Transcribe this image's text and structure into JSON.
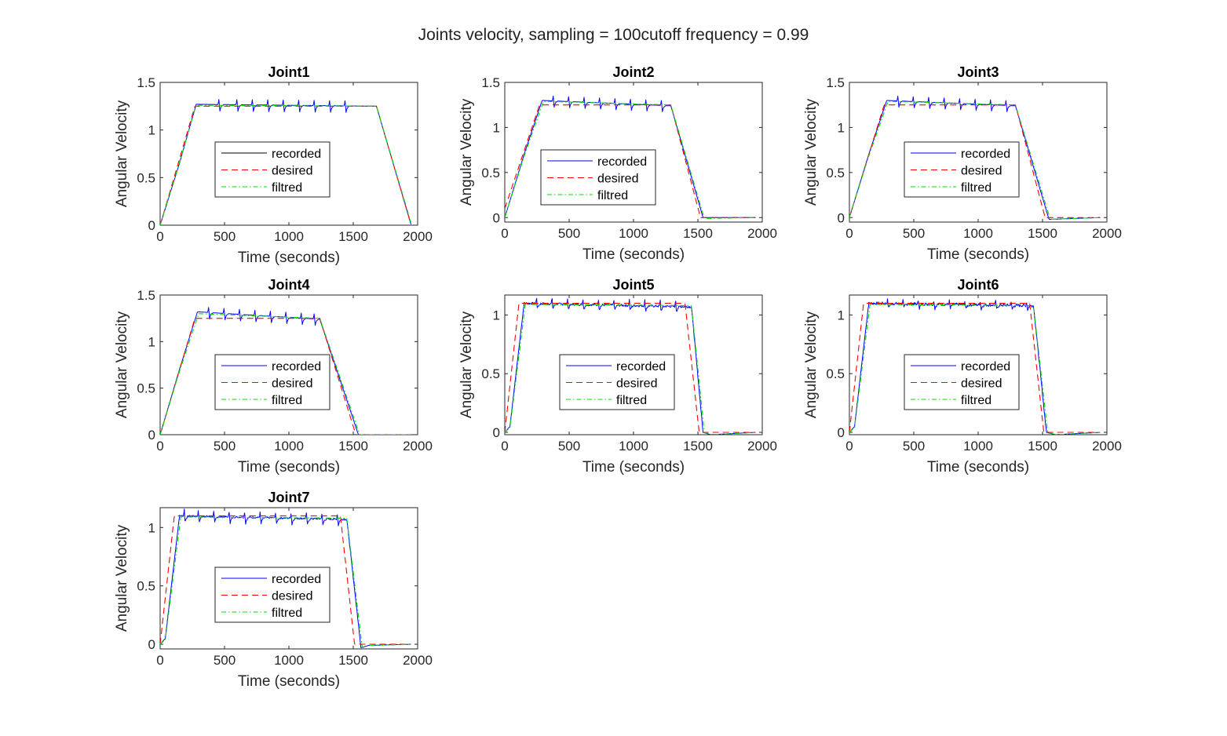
{
  "suptitle": "Joints velocity, sampling = 100cutoff frequency = 0.99",
  "colors": {
    "recorded": "#0000ff",
    "desired": "#ff0000",
    "filtred": "#00dd00",
    "axis": "#262626"
  },
  "chart_data": [
    {
      "type": "line",
      "title": "Joint1",
      "xlabel": "Time (seconds)",
      "ylabel": "Angular Velocity",
      "xlim": [
        0,
        2000
      ],
      "ylim": [
        0,
        1.5
      ],
      "xticks": [
        "0",
        "500",
        "1000",
        "1500",
        "2000"
      ],
      "yticks": [
        "0",
        "0.5",
        "1",
        "1.5"
      ],
      "legend": {
        "position": "center",
        "entries": [
          "recorded",
          "desired",
          "filtred"
        ]
      },
      "recorded_color": "#000000",
      "series": [
        {
          "name": "recorded",
          "x": [
            0,
            150,
            280,
            1680,
            1950
          ],
          "y": [
            0,
            0.65,
            1.27,
            1.25,
            0
          ],
          "spikes": [
            460,
            600,
            720,
            840,
            960,
            1080,
            1200,
            1320,
            1440
          ],
          "spike_amp": 0.09
        },
        {
          "name": "desired",
          "x": [
            0,
            270,
            1680,
            1950
          ],
          "y": [
            0,
            1.25,
            1.25,
            0
          ]
        },
        {
          "name": "filtred",
          "x": [
            0,
            150,
            280,
            1680,
            1950
          ],
          "y": [
            0,
            0.66,
            1.26,
            1.25,
            0.02
          ]
        }
      ]
    },
    {
      "type": "line",
      "title": "Joint2",
      "xlabel": "Time (seconds)",
      "ylabel": "Angular Velocity",
      "xlim": [
        0,
        2000
      ],
      "ylim": [
        -0.05,
        1.5
      ],
      "xticks": [
        "0",
        "500",
        "1000",
        "1500",
        "2000"
      ],
      "yticks": [
        "0",
        "0.5",
        "1",
        "1.5"
      ],
      "legend": {
        "position": "center-left",
        "entries": [
          "recorded",
          "desired",
          "filtred"
        ]
      },
      "series": [
        {
          "name": "recorded",
          "x": [
            0,
            150,
            290,
            1290,
            1540,
            1950
          ],
          "y": [
            0,
            0.7,
            1.3,
            1.24,
            0,
            0
          ],
          "spikes": [
            380,
            500,
            620,
            740,
            860,
            980,
            1100,
            1220
          ],
          "spike_amp": 0.09
        },
        {
          "name": "desired",
          "x": [
            0,
            270,
            1290,
            1520,
            1950
          ],
          "y": [
            0.1,
            1.25,
            1.25,
            0,
            0
          ]
        },
        {
          "name": "filtred",
          "x": [
            0,
            150,
            300,
            1290,
            1550,
            1950
          ],
          "y": [
            0,
            0.68,
            1.29,
            1.25,
            -0.01,
            0
          ]
        }
      ]
    },
    {
      "type": "line",
      "title": "Joint3",
      "xlabel": "Time (seconds)",
      "ylabel": "Angular Velocity",
      "xlim": [
        0,
        2000
      ],
      "ylim": [
        -0.05,
        1.5
      ],
      "xticks": [
        "0",
        "500",
        "1000",
        "1500",
        "2000"
      ],
      "yticks": [
        "0",
        "0.5",
        "1",
        "1.5"
      ],
      "legend": {
        "position": "center",
        "entries": [
          "recorded",
          "desired",
          "filtred"
        ]
      },
      "series": [
        {
          "name": "recorded",
          "x": [
            0,
            150,
            290,
            1290,
            1550,
            1950
          ],
          "y": [
            0,
            0.7,
            1.3,
            1.24,
            -0.02,
            0
          ],
          "spikes": [
            380,
            500,
            620,
            740,
            860,
            980,
            1100,
            1220
          ],
          "spike_amp": 0.09
        },
        {
          "name": "desired",
          "x": [
            0,
            270,
            1290,
            1520,
            1950
          ],
          "y": [
            0,
            1.25,
            1.25,
            0,
            0
          ]
        },
        {
          "name": "filtred",
          "x": [
            0,
            150,
            300,
            1290,
            1560,
            1950
          ],
          "y": [
            0,
            0.68,
            1.29,
            1.25,
            -0.02,
            0
          ]
        }
      ]
    },
    {
      "type": "line",
      "title": "Joint4",
      "xlabel": "Time (seconds)",
      "ylabel": "Angular Velocity",
      "xlim": [
        0,
        2000
      ],
      "ylim": [
        0,
        1.5
      ],
      "xticks": [
        "0",
        "500",
        "1000",
        "1500",
        "2000"
      ],
      "yticks": [
        "0",
        "0.5",
        "1",
        "1.5"
      ],
      "legend": {
        "position": "center",
        "entries": [
          "recorded",
          "desired",
          "filtred"
        ]
      },
      "series": [
        {
          "name": "recorded",
          "x": [
            0,
            150,
            290,
            1240,
            1540,
            1950
          ],
          "y": [
            0,
            0.7,
            1.32,
            1.24,
            0,
            0
          ],
          "spikes": [
            380,
            500,
            620,
            740,
            860,
            980,
            1100,
            1200
          ],
          "spike_amp": 0.09
        },
        {
          "name": "desired",
          "x": [
            0,
            270,
            1240,
            1520,
            1950
          ],
          "y": [
            0,
            1.25,
            1.25,
            0,
            0
          ]
        },
        {
          "name": "filtred",
          "x": [
            0,
            150,
            300,
            1240,
            1550,
            1950
          ],
          "y": [
            0,
            0.68,
            1.3,
            1.25,
            0,
            0
          ]
        }
      ]
    },
    {
      "type": "line",
      "title": "Joint5",
      "xlabel": "Time (seconds)",
      "ylabel": "Angular Velocity",
      "xlim": [
        0,
        2000
      ],
      "ylim": [
        -0.02,
        1.17
      ],
      "xticks": [
        "0",
        "500",
        "1000",
        "1500",
        "2000"
      ],
      "yticks": [
        "0",
        "0.5",
        "1"
      ],
      "legend": {
        "position": "center",
        "entries": [
          "recorded",
          "desired",
          "filtred"
        ]
      },
      "series": [
        {
          "name": "recorded",
          "x": [
            0,
            40,
            150,
            1450,
            1540,
            1600,
            1950
          ],
          "y": [
            0,
            0.05,
            1.1,
            1.07,
            0,
            -0.02,
            0
          ],
          "spikes": [
            250,
            370,
            490,
            610,
            730,
            850,
            970,
            1090,
            1210,
            1330
          ],
          "spike_amp": 0.06,
          "noise": 0.02
        },
        {
          "name": "desired",
          "x": [
            0,
            110,
            1400,
            1510,
            1950
          ],
          "y": [
            0,
            1.1,
            1.1,
            0,
            0
          ]
        },
        {
          "name": "filtred",
          "x": [
            0,
            40,
            160,
            1450,
            1550,
            1610,
            1950
          ],
          "y": [
            0,
            0.04,
            1.09,
            1.08,
            0,
            -0.02,
            0
          ]
        }
      ]
    },
    {
      "type": "line",
      "title": "Joint6",
      "xlabel": "Time (seconds)",
      "ylabel": "Angular Velocity",
      "xlim": [
        0,
        2000
      ],
      "ylim": [
        -0.02,
        1.17
      ],
      "xticks": [
        "0",
        "500",
        "1000",
        "1500",
        "2000"
      ],
      "yticks": [
        "0",
        "0.5",
        "1"
      ],
      "legend": {
        "position": "center",
        "entries": [
          "recorded",
          "desired",
          "filtred"
        ]
      },
      "series": [
        {
          "name": "recorded",
          "x": [
            0,
            40,
            150,
            1430,
            1530,
            1600,
            1950
          ],
          "y": [
            0,
            0.05,
            1.1,
            1.08,
            0,
            -0.02,
            0
          ],
          "spikes": [
            300,
            420,
            540,
            660,
            780,
            900,
            1020,
            1140,
            1260,
            1380
          ],
          "spike_amp": 0.05,
          "noise": 0.025
        },
        {
          "name": "desired",
          "x": [
            0,
            110,
            1400,
            1510,
            1950
          ],
          "y": [
            0,
            1.1,
            1.1,
            0,
            0
          ]
        },
        {
          "name": "filtred",
          "x": [
            0,
            40,
            160,
            1430,
            1540,
            1610,
            1950
          ],
          "y": [
            0,
            0.04,
            1.09,
            1.08,
            0,
            -0.02,
            0
          ]
        }
      ]
    },
    {
      "type": "line",
      "title": "Joint7",
      "xlabel": "Time (seconds)",
      "ylabel": "Angular Velocity",
      "xlim": [
        0,
        2000
      ],
      "ylim": [
        -0.04,
        1.17
      ],
      "xticks": [
        "0",
        "500",
        "1000",
        "1500",
        "2000"
      ],
      "yticks": [
        "0",
        "0.5",
        "1"
      ],
      "legend": {
        "position": "center",
        "entries": [
          "recorded",
          "desired",
          "filtred"
        ]
      },
      "series": [
        {
          "name": "recorded",
          "x": [
            0,
            40,
            150,
            1450,
            1560,
            1620,
            1950
          ],
          "y": [
            0,
            0.05,
            1.1,
            1.07,
            -0.03,
            -0.01,
            0
          ],
          "spikes": [
            190,
            300,
            420,
            540,
            660,
            780,
            900,
            1020,
            1140,
            1260,
            1380
          ],
          "spike_amp": 0.07,
          "noise": 0.015
        },
        {
          "name": "desired",
          "x": [
            0,
            110,
            1400,
            1510,
            1950
          ],
          "y": [
            0,
            1.1,
            1.1,
            0,
            0
          ]
        },
        {
          "name": "filtred",
          "x": [
            0,
            40,
            160,
            1450,
            1570,
            1630,
            1950
          ],
          "y": [
            0,
            0.04,
            1.09,
            1.08,
            -0.03,
            -0.01,
            0
          ]
        }
      ]
    }
  ]
}
